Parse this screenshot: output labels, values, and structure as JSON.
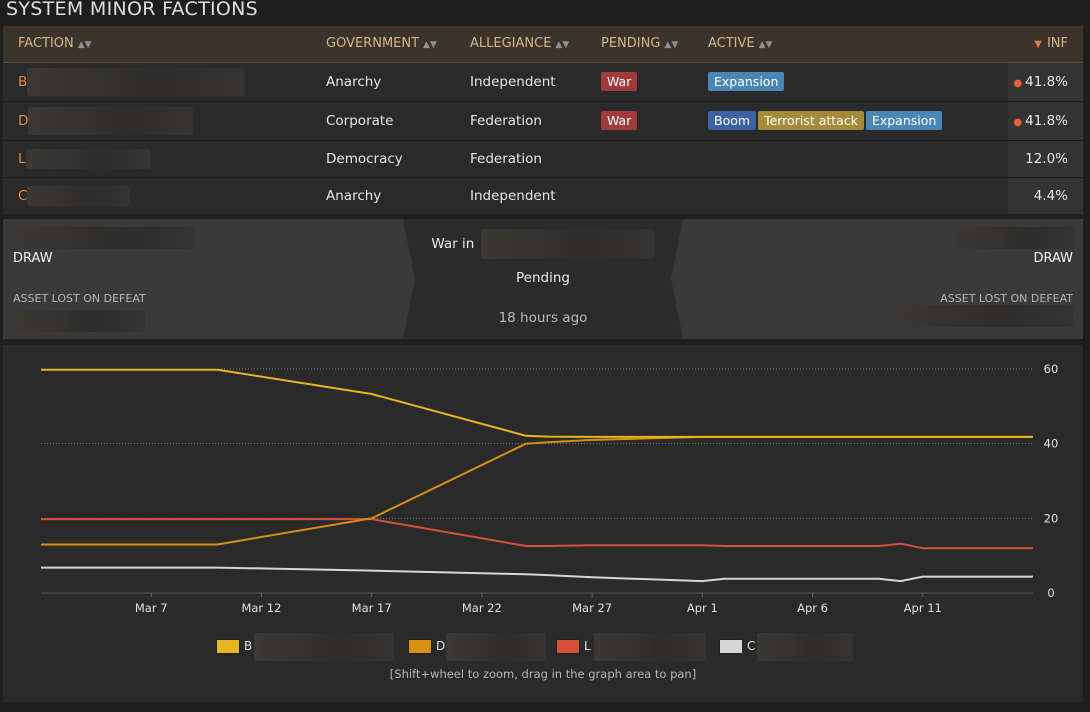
{
  "section_title": "SYSTEM MINOR FACTIONS",
  "table": {
    "headers": {
      "faction": "FACTION",
      "government": "GOVERNMENT",
      "allegiance": "ALLEGIANCE",
      "pending": "PENDING",
      "active": "ACTIVE",
      "inf": "INF"
    },
    "rows": [
      {
        "faction": "B",
        "government": "Anarchy",
        "allegiance": "Independent",
        "pending": [
          "War"
        ],
        "active": [
          "Expansion"
        ],
        "inf": "41.8%",
        "inf_dot": true
      },
      {
        "faction": "D",
        "government": "Corporate",
        "allegiance": "Federation",
        "pending": [
          "War"
        ],
        "active": [
          "Boom",
          "Terrorist attack",
          "Expansion"
        ],
        "inf": "41.8%",
        "inf_dot": true
      },
      {
        "faction": "L",
        "government": "Democracy",
        "allegiance": "Federation",
        "pending": [],
        "active": [],
        "inf": "12.0%",
        "inf_dot": false
      },
      {
        "faction": "C",
        "government": "Anarchy",
        "allegiance": "Independent",
        "pending": [],
        "active": [],
        "inf": "4.4%",
        "inf_dot": false
      }
    ]
  },
  "conflict": {
    "left_result": "DRAW",
    "left_asset_label": "ASSET LOST ON DEFEAT",
    "war_in_label": "War in",
    "status": "Pending",
    "time_ago": "18 hours ago",
    "right_result": "DRAW",
    "right_asset_label": "ASSET LOST ON DEFEAT"
  },
  "graph_hint": "[Shift+wheel to zoom, drag in the graph area to pan]",
  "colors": {
    "accent_orange": "#e58a3c",
    "header_text": "#d3b68c",
    "war_tag": "#a13a3a",
    "expansion_tag": "#4a86b5",
    "boom_tag": "#3d62a3",
    "terrorist_tag": "#a48a39"
  },
  "chart_data": {
    "type": "line",
    "x_ticks": [
      "Mar 7",
      "Mar 12",
      "Mar 17",
      "Mar 22",
      "Mar 27",
      "Apr 1",
      "Apr 6",
      "Apr 11"
    ],
    "y_ticks": [
      0,
      20,
      40,
      60
    ],
    "ylim": [
      0,
      60
    ],
    "grid": "horizontal dotted",
    "legend_position": "bottom",
    "x_dates": [
      "Mar 2",
      "Mar 9",
      "Mar 10",
      "Mar 17",
      "Mar 24",
      "Mar 25",
      "Mar 27",
      "Apr 1",
      "Apr 2",
      "Apr 6",
      "Apr 9",
      "Apr 10",
      "Apr 11",
      "Apr 16"
    ],
    "series": [
      {
        "name": "B",
        "color": "#e6b620",
        "values": [
          59.8,
          59.8,
          59.8,
          53.3,
          42.1,
          41.9,
          41.8,
          41.8,
          41.8,
          41.8,
          41.8,
          41.8,
          41.8,
          41.8
        ]
      },
      {
        "name": "D",
        "color": "#d9900f",
        "values": [
          13.0,
          13.0,
          13.0,
          20.0,
          40.0,
          40.4,
          41.0,
          41.8,
          41.8,
          41.8,
          41.8,
          41.8,
          41.8,
          41.8
        ]
      },
      {
        "name": "L",
        "color": "#d94f3a",
        "values": [
          19.8,
          19.8,
          19.8,
          19.8,
          12.6,
          12.6,
          12.8,
          12.8,
          12.6,
          12.6,
          12.6,
          13.2,
          12.0,
          12.0
        ]
      },
      {
        "name": "C",
        "color": "#d6d6d6",
        "values": [
          6.8,
          6.8,
          6.8,
          6.0,
          5.0,
          4.8,
          4.2,
          3.2,
          3.8,
          3.8,
          3.8,
          3.2,
          4.4,
          4.4
        ]
      }
    ]
  }
}
